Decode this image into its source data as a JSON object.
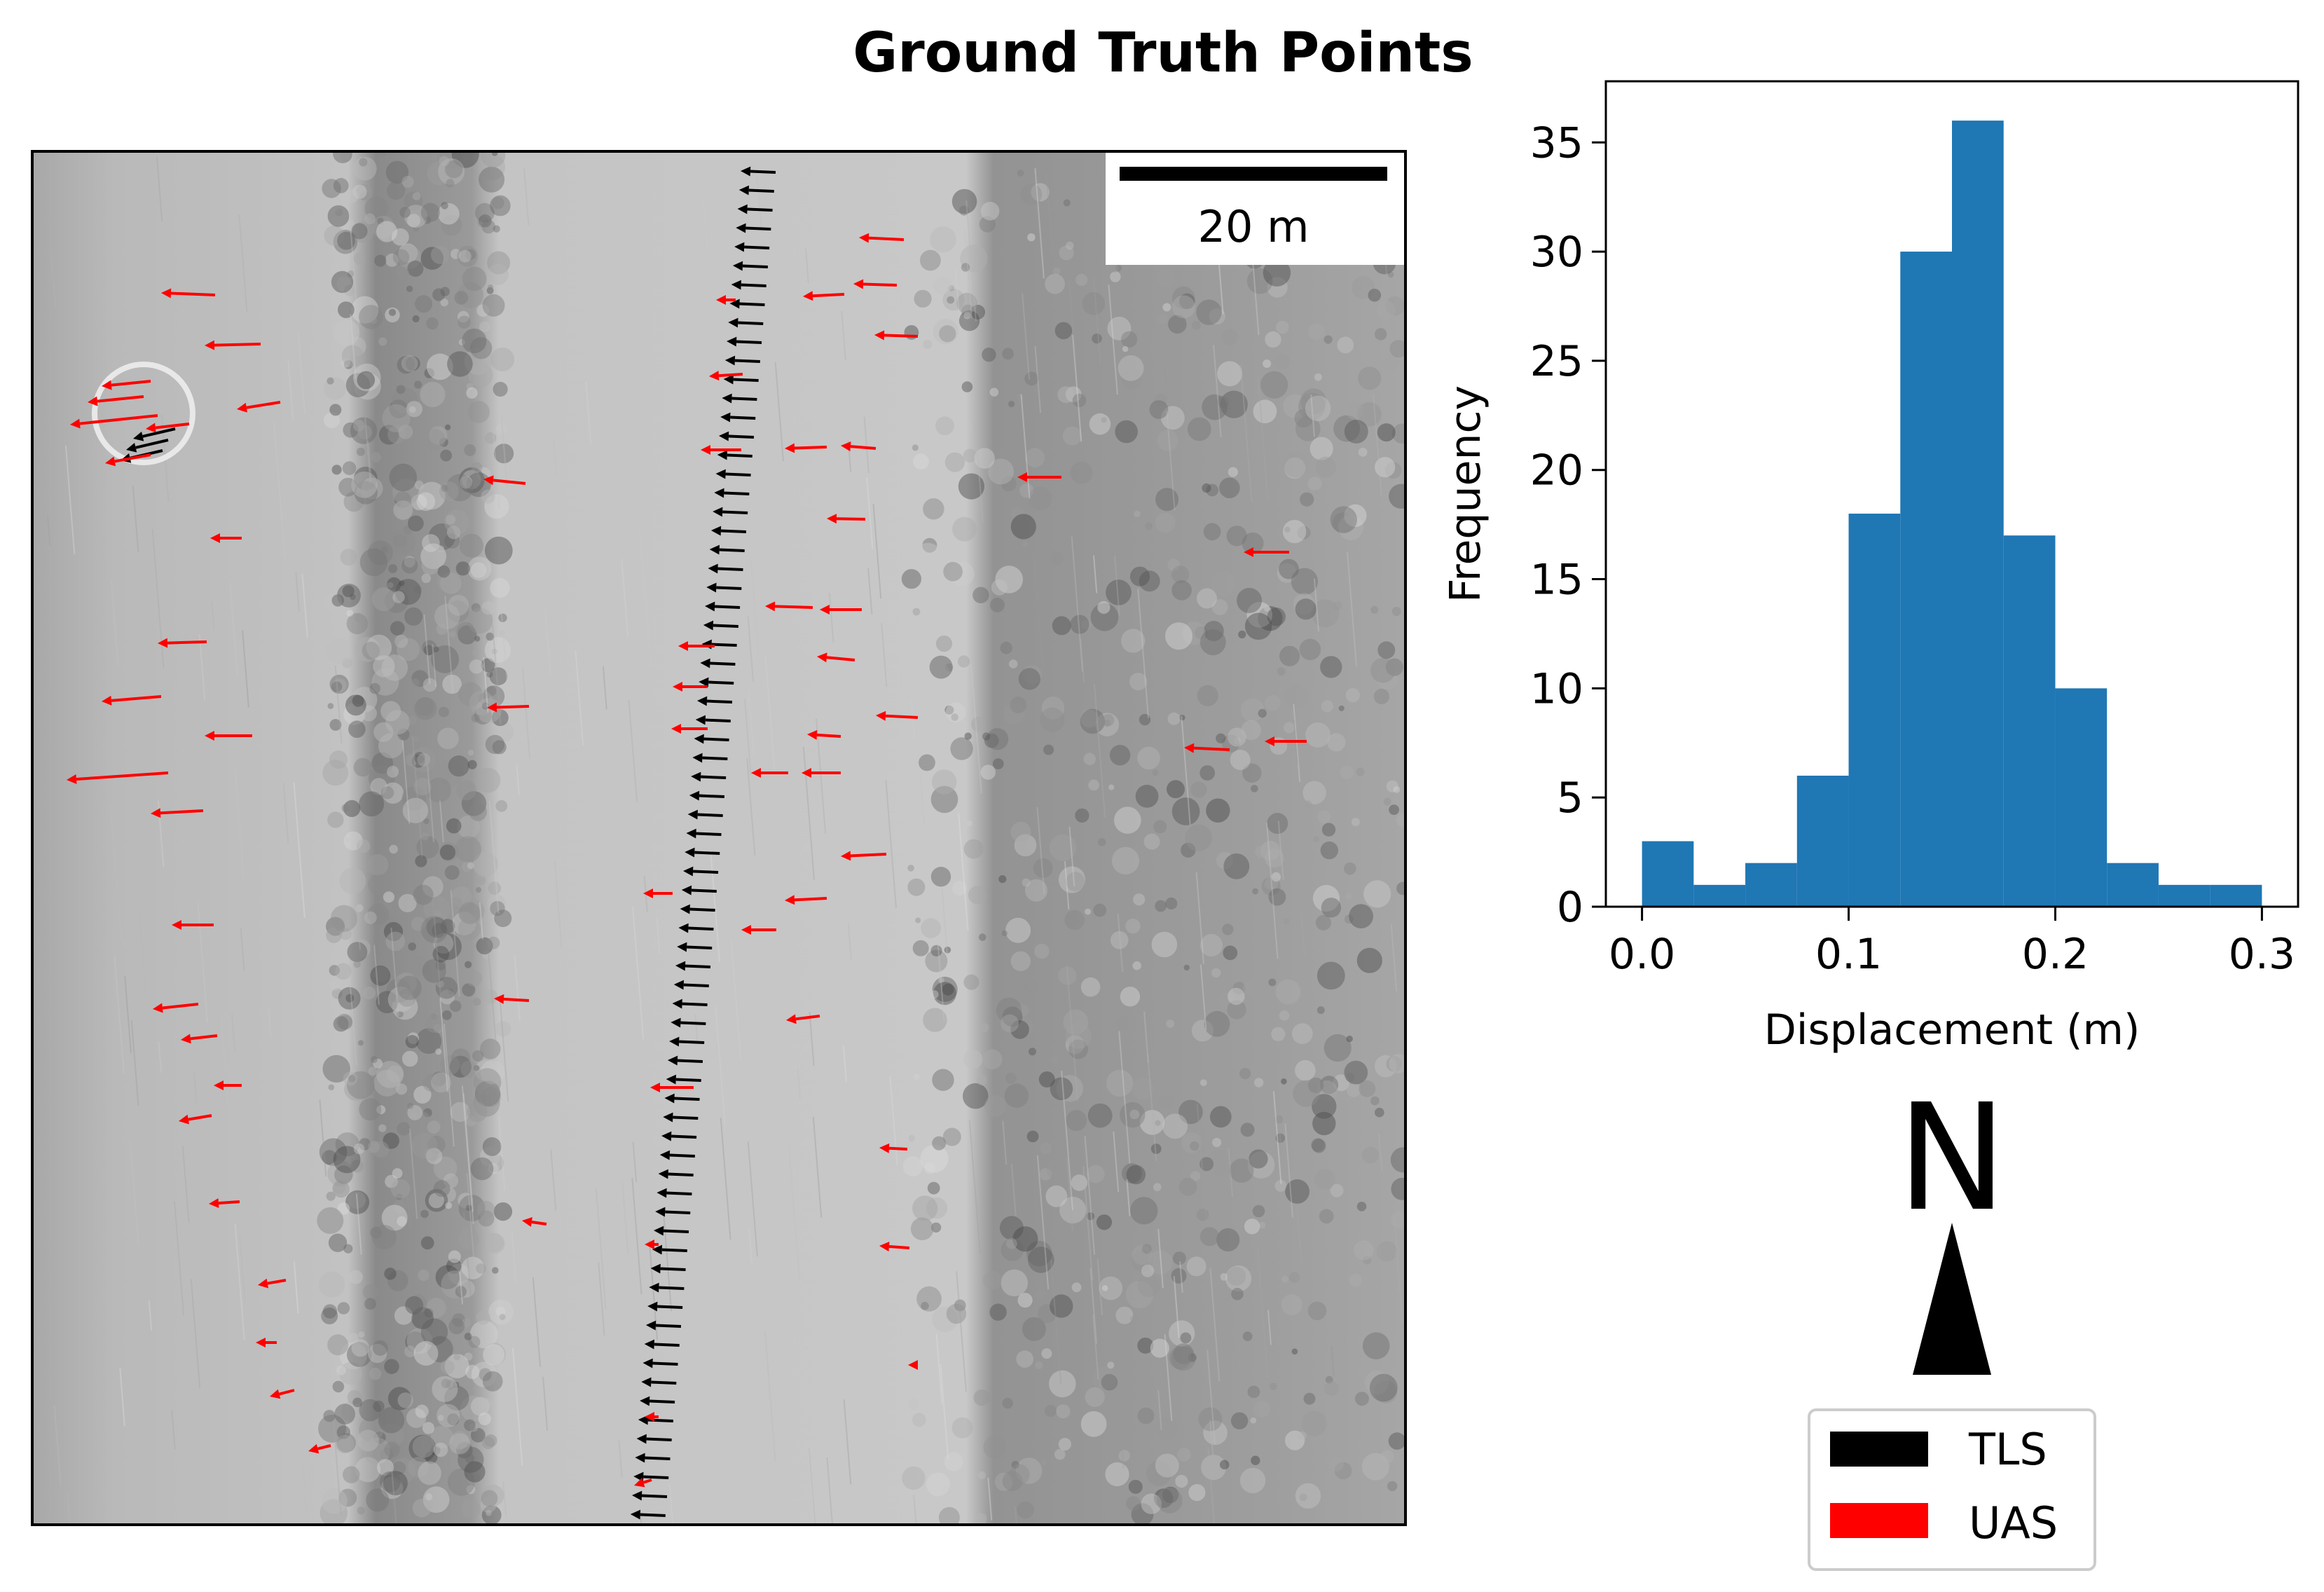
{
  "title": "Ground Truth Points",
  "map": {
    "scalebar_label": "20 m",
    "north_label": "N",
    "legend": [
      {
        "label": "TLS",
        "color": "#000000"
      },
      {
        "label": "UAS",
        "color": "#ff0000"
      }
    ],
    "colors": {
      "tls": "#000000",
      "uas": "#ff0000",
      "background": "#b9b9b9"
    }
  },
  "chart_data": {
    "type": "bar",
    "xlabel": "Displacement (m)",
    "ylabel": "Frequency",
    "xlim": [
      -0.0175,
      0.3175
    ],
    "ylim": [
      0,
      37.8
    ],
    "xticks": [
      0.0,
      0.1,
      0.2,
      0.3
    ],
    "xtick_labels": [
      "0.0",
      "0.1",
      "0.2",
      "0.3"
    ],
    "yticks": [
      0,
      5,
      10,
      15,
      20,
      25,
      30,
      35
    ],
    "ytick_labels": [
      "0",
      "5",
      "10",
      "15",
      "20",
      "25",
      "30",
      "35"
    ],
    "bin_edges": [
      0.0,
      0.025,
      0.05,
      0.075,
      0.1,
      0.125,
      0.15,
      0.175,
      0.2,
      0.225,
      0.25,
      0.275,
      0.3
    ],
    "values": [
      3,
      1,
      2,
      6,
      18,
      30,
      36,
      17,
      10,
      2,
      1,
      1
    ],
    "color": "#1f77b4",
    "grid": false
  }
}
